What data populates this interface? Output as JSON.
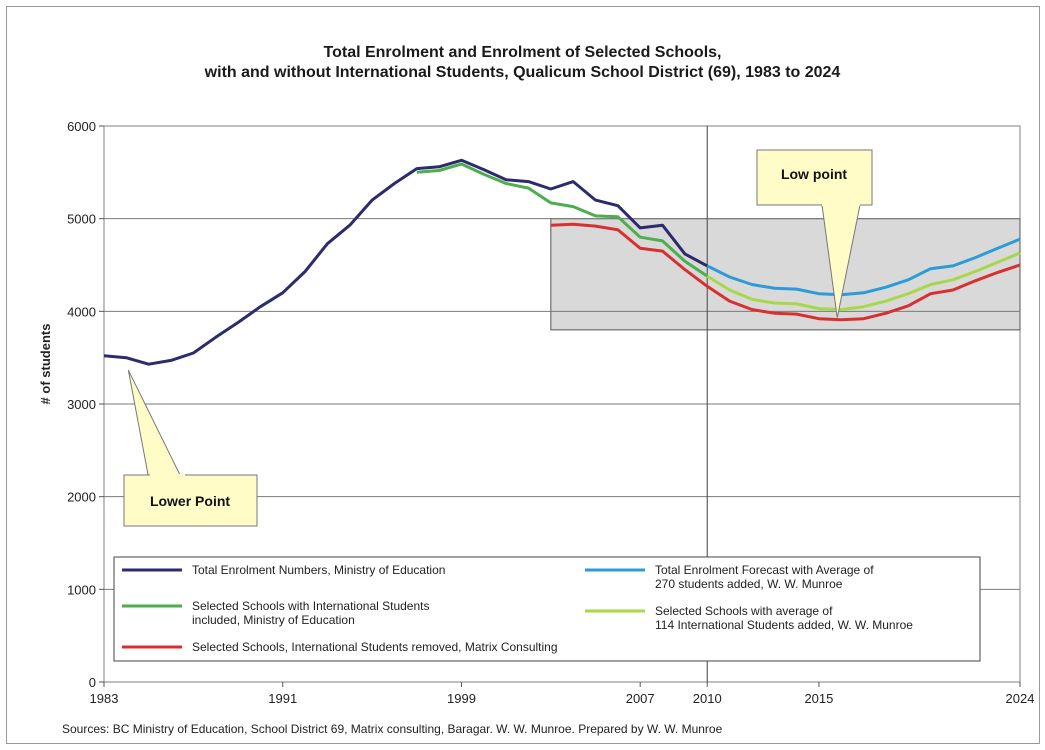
{
  "chart_data": {
    "type": "line",
    "title_line1": "Total Enrolment and Enrolment of Selected Schools,",
    "title_line2": "with and without International Students, Qualicum School District (69), 1983 to 2024",
    "ylabel": "# of students",
    "xlabel": "",
    "xlim": [
      1983,
      2024
    ],
    "ylim": [
      0,
      6000
    ],
    "y_ticks": [
      0,
      1000,
      2000,
      3000,
      4000,
      5000,
      6000
    ],
    "x_tick_labels": [
      {
        "value": 1983,
        "label": "1983"
      },
      {
        "value": 1991,
        "label": "1991"
      },
      {
        "value": 1999,
        "label": "1999"
      },
      {
        "value": 2007,
        "label": "2007"
      },
      {
        "value": 2010,
        "label": "2010"
      },
      {
        "value": 2015,
        "label": "2015"
      },
      {
        "value": 2024,
        "label": "2024"
      }
    ],
    "grid": "horizontal",
    "forecast_divider_year": 2010,
    "forecast_region": {
      "x": [
        2003,
        2024
      ],
      "y": [
        3800,
        5000
      ]
    },
    "series": [
      {
        "name": "Total Enrolment Numbers, Ministry of Education",
        "color": "#2b2b6e",
        "x": [
          1983,
          1984,
          1985,
          1986,
          1987,
          1988,
          1989,
          1990,
          1991,
          1992,
          1993,
          1994,
          1995,
          1996,
          1997,
          1998,
          1999,
          2000,
          2001,
          2002,
          2003,
          2004,
          2005,
          2006,
          2007,
          2008,
          2009,
          2010
        ],
        "values": [
          3520,
          3500,
          3430,
          3470,
          3550,
          3720,
          3880,
          4050,
          4200,
          4430,
          4730,
          4930,
          5200,
          5380,
          5540,
          5560,
          5630,
          5530,
          5420,
          5400,
          5320,
          5400,
          5200,
          5140,
          4900,
          4930,
          4620,
          4490
        ]
      },
      {
        "name": "Selected Schools with International Students included, Ministry of Education",
        "color": "#4cae4c",
        "x": [
          1997,
          1998,
          1999,
          2000,
          2001,
          2002,
          2003,
          2004,
          2005,
          2006,
          2007,
          2008,
          2009,
          2010
        ],
        "values": [
          5500,
          5520,
          5590,
          5480,
          5380,
          5330,
          5170,
          5130,
          5030,
          5020,
          4800,
          4760,
          4540,
          4380
        ]
      },
      {
        "name": "Selected Schools, International Students removed, Matrix Consulting",
        "color": "#d83030",
        "x": [
          2003,
          2004,
          2005,
          2006,
          2007,
          2008,
          2009,
          2010,
          2011,
          2012,
          2013,
          2014,
          2015,
          2016,
          2017,
          2018,
          2019,
          2020,
          2021,
          2022,
          2023,
          2024
        ],
        "values": [
          4930,
          4940,
          4920,
          4880,
          4680,
          4650,
          4450,
          4270,
          4110,
          4020,
          3980,
          3970,
          3920,
          3910,
          3920,
          3980,
          4060,
          4190,
          4230,
          4330,
          4420,
          4500
        ]
      },
      {
        "name": "Total Enrolment Forecast with Average of 270 students added, W. W. Munroe",
        "color": "#2e9bd6",
        "x": [
          2010,
          2011,
          2012,
          2013,
          2014,
          2015,
          2016,
          2017,
          2018,
          2019,
          2020,
          2021,
          2022,
          2023,
          2024
        ],
        "values": [
          4490,
          4370,
          4290,
          4250,
          4240,
          4190,
          4180,
          4200,
          4260,
          4340,
          4460,
          4490,
          4580,
          4680,
          4780
        ]
      },
      {
        "name": "Selected Schools with average of 114 International Students added, W. W. Munroe",
        "color": "#a6d84a",
        "x": [
          2010,
          2011,
          2012,
          2013,
          2014,
          2015,
          2016,
          2017,
          2018,
          2019,
          2020,
          2021,
          2022,
          2023,
          2024
        ],
        "values": [
          4380,
          4230,
          4130,
          4090,
          4080,
          4030,
          4020,
          4050,
          4110,
          4190,
          4290,
          4340,
          4430,
          4530,
          4630
        ]
      }
    ],
    "legend_order": [
      0,
      3,
      1,
      4,
      2
    ],
    "legend_lines": [
      [
        "Total Enrolment Numbers, Ministry of Education"
      ],
      [
        "Total Enrolment Forecast with Average of",
        "270 students added, W. W. Munroe"
      ],
      [
        "Selected Schools with International Students",
        "included, Ministry of Education"
      ],
      [
        "Selected Schools with average of",
        "114 International Students added, W. W. Munroe"
      ],
      [
        "Selected Schools, International Students removed, Matrix Consulting"
      ]
    ],
    "annotations": [
      {
        "text": "Lower Point",
        "x": 1984,
        "y": 3430
      },
      {
        "text": "Low point",
        "x": 2016,
        "y": 3910
      }
    ],
    "source": "Sources: BC Ministry of Education, School District 69, Matrix consulting, Baragar. W. W. Munroe. Prepared by W. W. Munroe"
  }
}
